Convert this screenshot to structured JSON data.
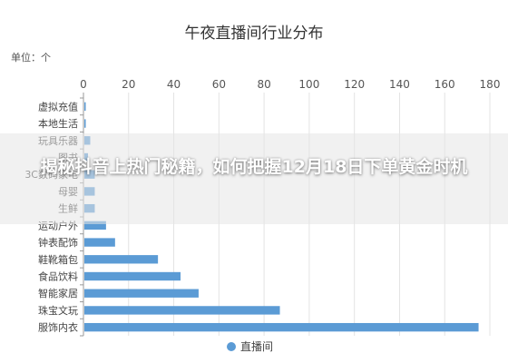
{
  "chart_data": {
    "type": "bar",
    "orientation": "horizontal",
    "title": "午夜直播间行业分布",
    "unit_label": "单位：个",
    "categories": [
      "虚拟充值",
      "本地生活",
      "玩具乐器",
      "图书",
      "3C数码家电",
      "母婴",
      "生鲜",
      "运动户外",
      "钟表配饰",
      "鞋靴箱包",
      "食品饮料",
      "智能家居",
      "珠宝文玩",
      "服饰内衣"
    ],
    "series": [
      {
        "name": "直播间",
        "values": [
          1,
          1,
          3,
          2,
          5,
          5,
          5,
          10,
          14,
          33,
          43,
          51,
          87,
          175
        ]
      }
    ],
    "xlim": [
      0,
      180
    ],
    "xticks": [
      0,
      20,
      40,
      60,
      80,
      100,
      120,
      140,
      160,
      180
    ],
    "grid": true,
    "legend": "bottom",
    "colors": {
      "bar": "#5b9bd5",
      "grid": "#e3e3e3",
      "axis": "#999999"
    }
  },
  "overlay_headline": "揭秘抖音上热门秘籍，如何把握12月18日下单黄金时机"
}
